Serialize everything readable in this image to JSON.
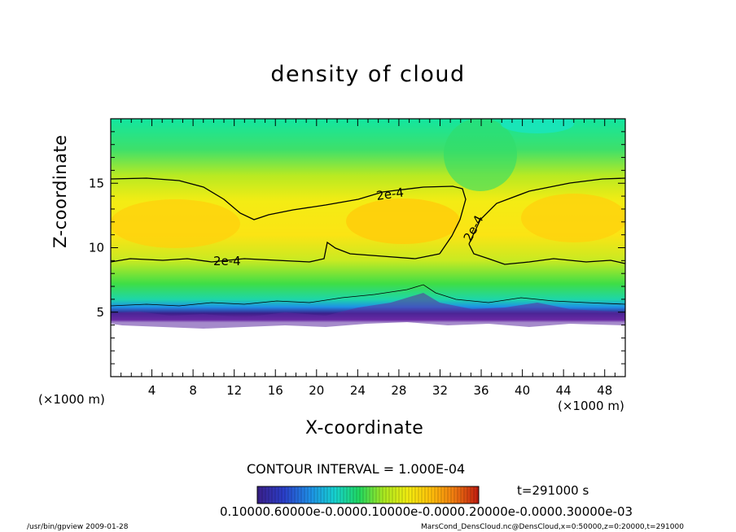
{
  "chart_data": {
    "type": "heatmap",
    "title": "density of cloud",
    "xlabel": "X-coordinate",
    "ylabel": "Z-coordinate",
    "x_unit_left": "(×1000 m)",
    "x_unit_right": "(×1000 m)",
    "xlim": [
      0,
      50
    ],
    "ylim": [
      0,
      20
    ],
    "x_ticks": [
      4,
      8,
      12,
      16,
      20,
      24,
      28,
      32,
      36,
      40,
      44,
      48
    ],
    "y_ticks": [
      5,
      10,
      15
    ],
    "contour_interval_text": "CONTOUR INTERVAL = 1.000E-04",
    "contour_level_label": "2e-4",
    "time_text": "t=291000 s",
    "colorbar_tick_text": "0.10000.60000e-0.0000.10000e-0.0000.20000e-0.0000.30000e-03",
    "colorbar_range": [
      0,
      0.0003
    ],
    "colormap": [
      "#3a1f8a",
      "#2a3ec8",
      "#1e90e6",
      "#16d2d0",
      "#20d860",
      "#a8e820",
      "#f2ec10",
      "#ffc20a",
      "#f07a10",
      "#c01a10"
    ],
    "cloud_base_z": 4.5,
    "cloud_top_z": 20,
    "core_band_z": [
      8.5,
      15.2
    ]
  },
  "footer": {
    "left": "/usr/bin/gpview  2009-01-28",
    "right": "MarsCond_DensCloud.nc@DensCloud,x=0:50000,z=0:20000,t=291000"
  }
}
